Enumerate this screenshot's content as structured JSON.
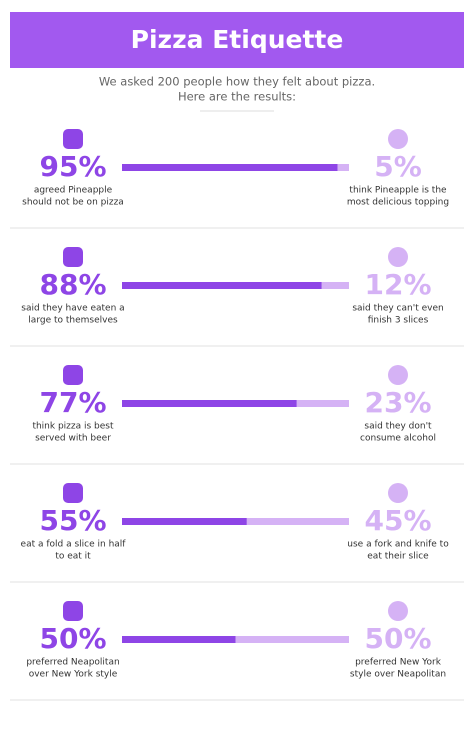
{
  "header": {
    "title": "Pizza Etiquette"
  },
  "intro": [
    "We asked 200 people how they felt about pizza.",
    "Here are the results:"
  ],
  "rows": [
    {
      "left": {
        "value": 95,
        "value_label": "95%",
        "text": [
          "agreed Pineapple",
          "should not be on pizza"
        ]
      },
      "right": {
        "value": 5,
        "value_label": "5%",
        "text": [
          "think Pineapple is the",
          "most delicious topping"
        ]
      }
    },
    {
      "left": {
        "value": 88,
        "value_label": "88%",
        "text": [
          "said they have eaten a",
          "large to themselves"
        ]
      },
      "right": {
        "value": 12,
        "value_label": "12%",
        "text": [
          "said they can't even",
          "finish 3 slices"
        ]
      }
    },
    {
      "left": {
        "value": 77,
        "value_label": "77%",
        "text": [
          "think pizza is best",
          "served with beer"
        ]
      },
      "right": {
        "value": 23,
        "value_label": "23%",
        "text": [
          "said they don't",
          "consume alcohol"
        ]
      }
    },
    {
      "left": {
        "value": 55,
        "value_label": "55%",
        "text": [
          "eat a fold a slice in half",
          "to eat it"
        ]
      },
      "right": {
        "value": 45,
        "value_label": "45%",
        "text": [
          "use a fork and knife to",
          "eat their slice"
        ]
      }
    },
    {
      "left": {
        "value": 50,
        "value_label": "50%",
        "text": [
          "preferred Neapolitan",
          "over New York style"
        ]
      },
      "right": {
        "value": 50,
        "value_label": "50%",
        "text": [
          "preferred New York",
          "style over Neapolitan"
        ]
      }
    }
  ]
}
